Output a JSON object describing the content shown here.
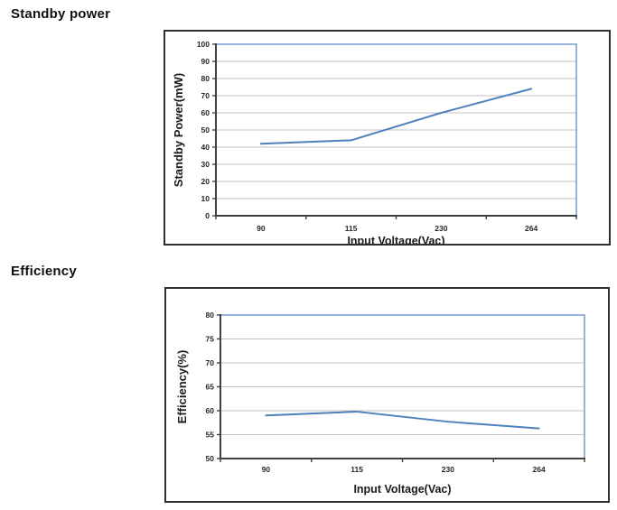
{
  "page": {
    "background": "#ffffff"
  },
  "sections": [
    {
      "heading": "Standby power"
    },
    {
      "heading": "Efficiency"
    }
  ],
  "colors": {
    "series_line": "#4f81bd",
    "plot_border": "#7da2d4",
    "gridline": "#c2c2c2",
    "axis": "#404040",
    "box_border": "#2f2f2f",
    "tick_text": "#262626",
    "title_text": "#1a1a1a"
  },
  "chart_data": [
    {
      "type": "line",
      "title": "Standby power",
      "categories": [
        "90",
        "115",
        "230",
        "264"
      ],
      "series": [
        {
          "name": "Standby Power(mW)",
          "values": [
            42,
            44,
            60,
            74
          ]
        }
      ],
      "xlabel": "Input Voltage(Vac)",
      "ylabel": "Standby Power(mW)",
      "ylim": [
        0,
        100
      ],
      "yticks": [
        0,
        10,
        20,
        30,
        40,
        50,
        60,
        70,
        80,
        90,
        100
      ],
      "grid": true,
      "legend": "none"
    },
    {
      "type": "line",
      "title": "Efficiency",
      "categories": [
        "90",
        "115",
        "230",
        "264"
      ],
      "series": [
        {
          "name": "Efficiency(%)",
          "values": [
            59,
            59.8,
            57.7,
            56.3
          ]
        }
      ],
      "xlabel": "Input Voltage(Vac)",
      "ylabel": "Efficiency(%)",
      "ylim": [
        50,
        80
      ],
      "yticks": [
        50,
        55,
        60,
        65,
        70,
        75,
        80
      ],
      "grid": true,
      "legend": "none"
    }
  ]
}
